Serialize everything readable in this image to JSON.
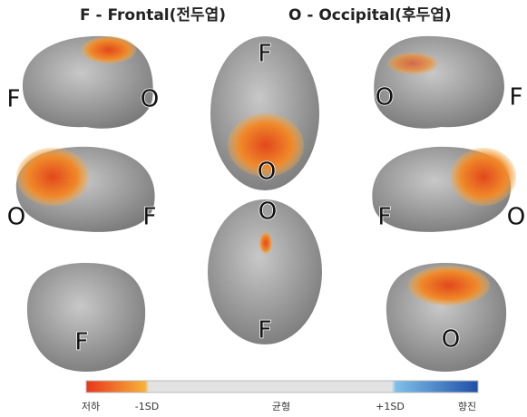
{
  "header": {
    "items": [
      "F - Frontal(전두엽)",
      "O - Occipital(후두엽)"
    ]
  },
  "views": [
    {
      "labels": [
        "F",
        "O"
      ]
    },
    {
      "labels": [
        "F",
        "O"
      ]
    },
    {
      "labels": [
        "O",
        "F"
      ]
    },
    {
      "labels": [
        "O",
        "F"
      ]
    },
    {
      "labels": [
        "O",
        "F"
      ]
    },
    {
      "labels": [
        "F",
        "O"
      ]
    },
    {
      "labels": [
        "F"
      ]
    },
    {
      "labels": [
        "O"
      ]
    }
  ],
  "colorbar": {
    "labels": [
      "저하",
      "-1SD",
      "균형",
      "+1SD",
      "향진"
    ]
  }
}
